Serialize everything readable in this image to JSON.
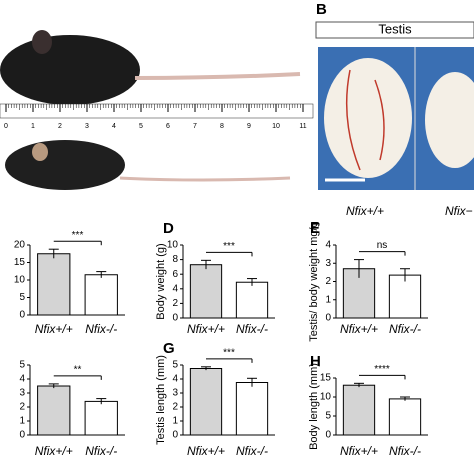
{
  "photo_panel": {
    "label": "B",
    "header": "Testis",
    "captions": [
      "Nfix+/+",
      "Nfix−"
    ],
    "ruler": [
      0,
      1,
      2,
      3,
      4,
      5,
      6,
      7,
      8,
      9,
      10,
      11
    ]
  },
  "chart_data": [
    {
      "type": "bar",
      "panel": null,
      "ylabel": null,
      "categories": [
        "Nfix+/+",
        "Nfix-/-"
      ],
      "values": [
        17.5,
        11.5
      ],
      "errors": [
        1.3,
        0.9
      ],
      "ylim": [
        0,
        20
      ],
      "yticks": [
        0,
        5,
        10,
        15,
        20
      ],
      "significance": "***",
      "colors": [
        "#d4d4d4",
        "#ffffff"
      ]
    },
    {
      "type": "bar",
      "panel": "D",
      "ylabel": "Body weight (g)",
      "categories": [
        "Nfix+/+",
        "Nfix-/-"
      ],
      "values": [
        7.3,
        4.9
      ],
      "errors": [
        0.6,
        0.5
      ],
      "ylim": [
        0,
        10
      ],
      "yticks": [
        0,
        2,
        4,
        6,
        8,
        10
      ],
      "significance": "***",
      "colors": [
        "#d4d4d4",
        "#ffffff"
      ]
    },
    {
      "type": "bar",
      "panel": "E",
      "ylabel": "Testis/ body weight mg/g",
      "categories": [
        "Nfix+/+",
        "Nfix-/-"
      ],
      "values": [
        2.7,
        2.35
      ],
      "errors": [
        0.5,
        0.35
      ],
      "ylim": [
        0,
        4
      ],
      "yticks": [
        0,
        1,
        2,
        3,
        4
      ],
      "significance": "ns",
      "colors": [
        "#d4d4d4",
        "#ffffff"
      ]
    },
    {
      "type": "bar",
      "panel": null,
      "ylabel": null,
      "categories": [
        "Nfix+/+",
        "Nfix-/-"
      ],
      "values": [
        3.5,
        2.4
      ],
      "errors": [
        0.15,
        0.2
      ],
      "ylim": [
        0,
        5
      ],
      "yticks": [
        0,
        1,
        2,
        3,
        4,
        5
      ],
      "significance": "**",
      "colors": [
        "#d4d4d4",
        "#ffffff"
      ]
    },
    {
      "type": "bar",
      "panel": "G",
      "ylabel": "Testis length (mm)",
      "categories": [
        "Nfix+/+",
        "Nfix-/-"
      ],
      "values": [
        4.75,
        3.75
      ],
      "errors": [
        0.12,
        0.3
      ],
      "ylim": [
        0,
        5
      ],
      "yticks": [
        0,
        1,
        2,
        3,
        4,
        5
      ],
      "significance": "***",
      "colors": [
        "#d4d4d4",
        "#ffffff"
      ]
    },
    {
      "type": "bar",
      "panel": "H",
      "ylabel": "Body length (mm)",
      "categories": [
        "Nfix+/+",
        "Nfix-/-"
      ],
      "values": [
        13.1,
        9.5
      ],
      "errors": [
        0.5,
        0.5
      ],
      "ylim": [
        0,
        15
      ],
      "yticks": [
        0,
        5,
        10,
        15
      ],
      "significance": "****",
      "colors": [
        "#d4d4d4",
        "#ffffff"
      ]
    }
  ]
}
